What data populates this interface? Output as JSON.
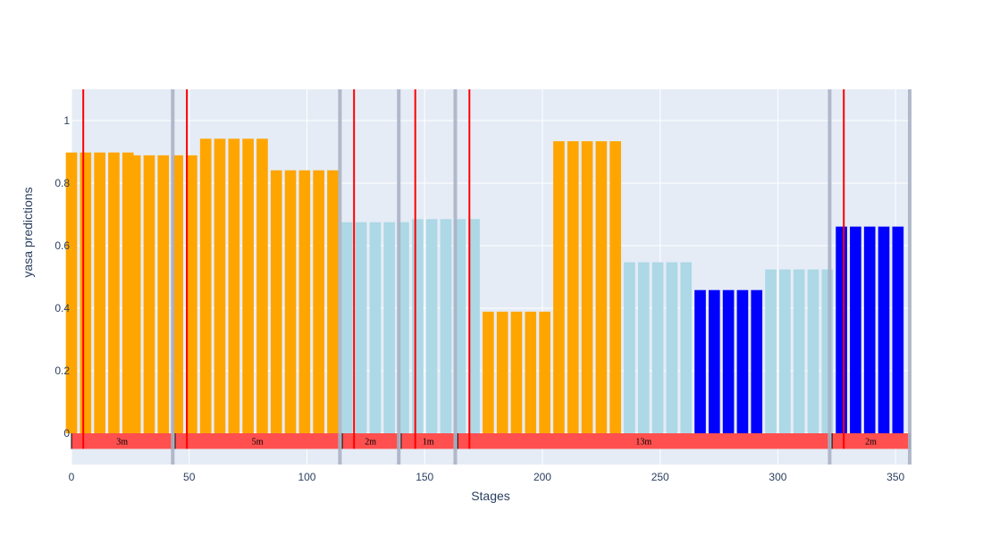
{
  "chart_data": {
    "type": "bar",
    "xlabel": "Stages",
    "ylabel": "yasa predictions",
    "xlim": [
      0,
      356
    ],
    "ylim": [
      -0.1,
      1.1
    ],
    "xticks": [
      0,
      50,
      100,
      150,
      200,
      250,
      300,
      350
    ],
    "yticks": [
      0,
      0.2,
      0.4,
      0.6,
      0.8,
      1
    ],
    "ytick_labels": [
      "0",
      "0.2",
      "0.4",
      "0.6",
      "0.8",
      "1"
    ],
    "grid": true,
    "bar_spacing": 6,
    "colors": {
      "orange": "#FFA500",
      "lightblue": "#ADD8E6",
      "blue": "#0000FF",
      "segment": "#FF4F4F",
      "marker": "#FF0000",
      "boundary": "#AAB3C5",
      "plot_bg": "#E5ECF6",
      "axis_text": "#2a3f5f"
    },
    "bar_groups": [
      {
        "start": 0,
        "count": 5,
        "value": 0.898,
        "color": "orange"
      },
      {
        "start": 27,
        "count": 3,
        "value": 0.889,
        "color": "orange"
      },
      {
        "start": 45,
        "count": 2,
        "value": 0.889,
        "color": "orange"
      },
      {
        "start": 57,
        "count": 5,
        "value": 0.942,
        "color": "orange"
      },
      {
        "start": 87,
        "count": 5,
        "value": 0.841,
        "color": "orange"
      },
      {
        "start": 117,
        "count": 5,
        "value": 0.675,
        "color": "lightblue"
      },
      {
        "start": 147,
        "count": 5,
        "value": 0.685,
        "color": "lightblue"
      },
      {
        "start": 177,
        "count": 5,
        "value": 0.389,
        "color": "orange"
      },
      {
        "start": 207,
        "count": 5,
        "value": 0.934,
        "color": "orange"
      },
      {
        "start": 237,
        "count": 5,
        "value": 0.547,
        "color": "lightblue"
      },
      {
        "start": 267,
        "count": 5,
        "value": 0.458,
        "color": "blue"
      },
      {
        "start": 297,
        "count": 5,
        "value": 0.524,
        "color": "lightblue"
      },
      {
        "start": 327,
        "count": 5,
        "value": 0.661,
        "color": "blue"
      }
    ],
    "boundaries": [
      43,
      114,
      139,
      163,
      322,
      356
    ],
    "markers": [
      5,
      49,
      120,
      146,
      169,
      328
    ],
    "segments": [
      {
        "start": 0,
        "end": 43,
        "label": "3m"
      },
      {
        "start": 44,
        "end": 114,
        "label": "5m"
      },
      {
        "start": 115,
        "end": 139,
        "label": "2m"
      },
      {
        "start": 140,
        "end": 163,
        "label": "1m"
      },
      {
        "start": 164,
        "end": 322,
        "label": "13m"
      },
      {
        "start": 323,
        "end": 356,
        "label": "2m"
      }
    ],
    "segment_y": [
      -0.05,
      0
    ]
  }
}
